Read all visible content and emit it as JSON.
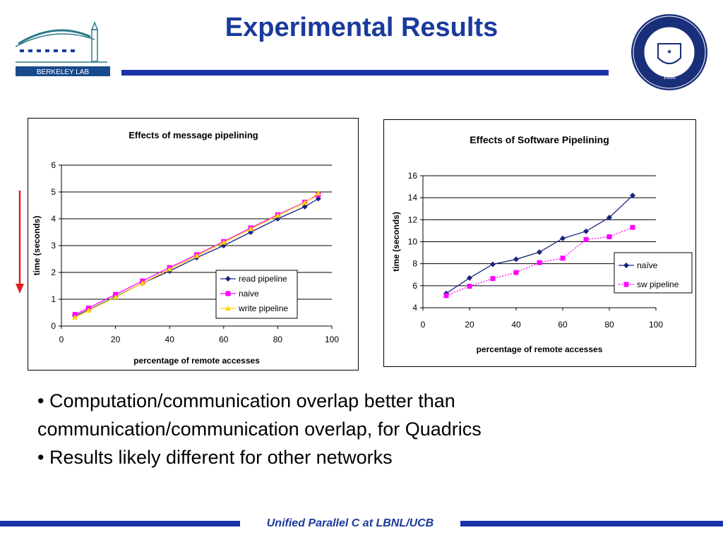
{
  "slide": {
    "title": "Experimental Results",
    "logo_text": "BERKELEY LAB",
    "seal_text": "THE UNIVERSITY OF CALIFORNIA BERKELEY",
    "seal_year": "1868",
    "bullets": [
      "• Computation/communication overlap better than",
      "communication/communication overlap, for Quadrics",
      "• Results likely different for other networks"
    ],
    "footer": "Unified Parallel C at LBNL/UCB",
    "colors": {
      "title": "#1a3a9c",
      "rule": "#1a33a8",
      "arrow": "#e02020"
    }
  },
  "chart_data": [
    {
      "type": "line",
      "title": "Effects of message pipelining",
      "xlabel": "percentage of remote accesses",
      "ylabel": "time (seconds)",
      "xlim": [
        0,
        100
      ],
      "ylim": [
        0,
        6
      ],
      "xticks": [
        0,
        20,
        40,
        60,
        80,
        100
      ],
      "yticks": [
        0,
        1,
        2,
        3,
        4,
        5,
        6
      ],
      "grid": "horizontal",
      "legend": "bottom-right",
      "x": [
        5,
        10,
        20,
        30,
        40,
        50,
        60,
        70,
        80,
        90,
        95
      ],
      "series": [
        {
          "name": "read pipeline",
          "color": "#1a237e",
          "marker": "diamond",
          "values": [
            0.38,
            0.6,
            1.1,
            1.6,
            2.05,
            2.55,
            3.0,
            3.5,
            4.0,
            4.45,
            4.75
          ]
        },
        {
          "name": "naive",
          "color": "#ff00ff",
          "marker": "square",
          "values": [
            0.43,
            0.67,
            1.18,
            1.68,
            2.18,
            2.66,
            3.15,
            3.66,
            4.15,
            4.62,
            4.9
          ]
        },
        {
          "name": "write pipeline",
          "color": "#ffd400",
          "marker": "triangle",
          "values": [
            0.32,
            0.58,
            1.08,
            1.6,
            2.12,
            2.62,
            3.12,
            3.62,
            4.12,
            4.6,
            4.95
          ]
        }
      ]
    },
    {
      "type": "line",
      "title": "Effects of Software Pipelining",
      "xlabel": "percentage of remote accesses",
      "ylabel": "time (seconds)",
      "xlim": [
        0,
        100
      ],
      "ylim": [
        4,
        16
      ],
      "xticks": [
        0,
        20,
        40,
        60,
        80,
        100
      ],
      "yticks": [
        4,
        6,
        8,
        10,
        12,
        14,
        16
      ],
      "grid": "horizontal",
      "legend": "right",
      "x": [
        10,
        20,
        30,
        40,
        50,
        60,
        70,
        80,
        90
      ],
      "series": [
        {
          "name": "naïve",
          "color": "#1a237e",
          "marker": "diamond",
          "style": "solid",
          "values": [
            5.3,
            6.7,
            7.95,
            8.4,
            9.05,
            10.3,
            10.95,
            12.2,
            14.2
          ]
        },
        {
          "name": "sw pipeline",
          "color": "#ff00ff",
          "marker": "square",
          "style": "dotted",
          "values": [
            5.1,
            5.95,
            6.65,
            7.2,
            8.1,
            8.5,
            10.2,
            10.45,
            11.3
          ]
        }
      ]
    }
  ]
}
